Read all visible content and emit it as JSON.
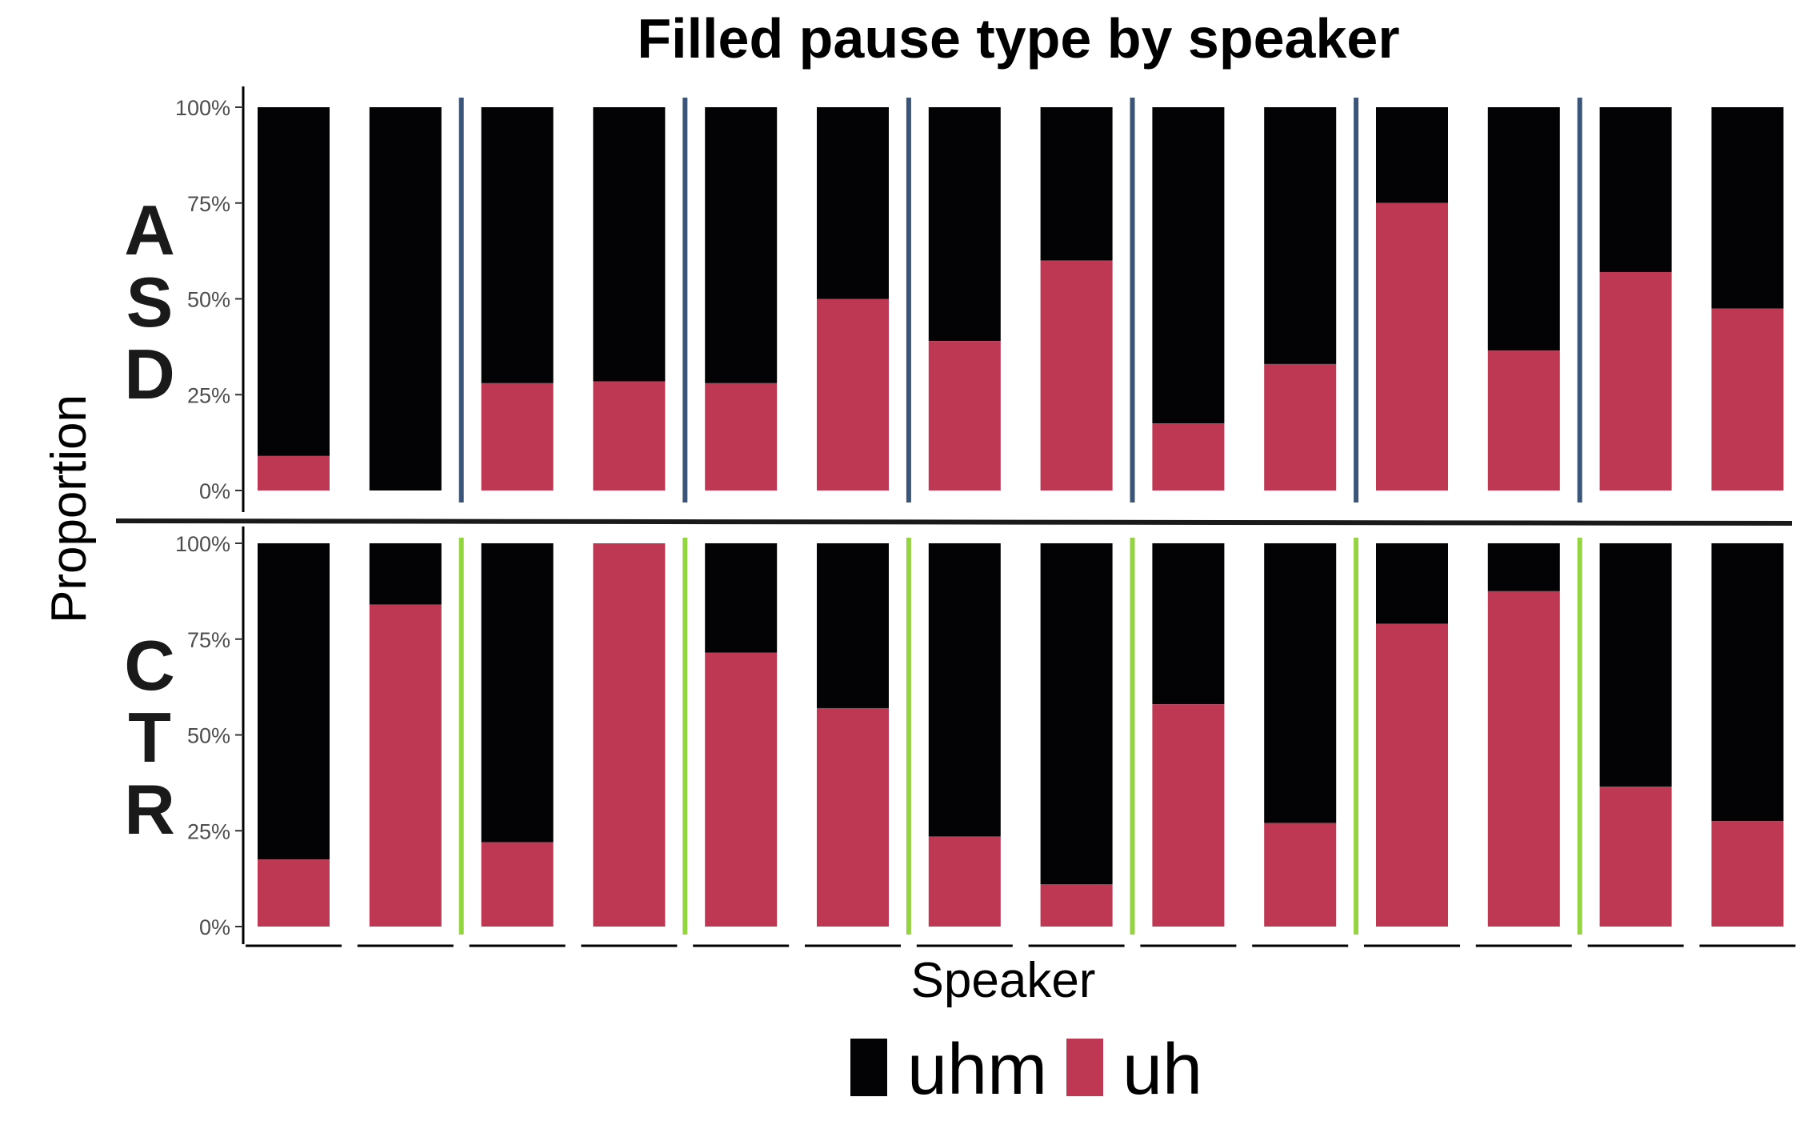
{
  "chart_data": {
    "type": "bar",
    "stacked": true,
    "normalized": true,
    "title": "Filled pause type by speaker",
    "xlabel": "Speaker",
    "ylabel": "Proportion",
    "ylim": [
      0,
      1
    ],
    "yticks": [
      "0%",
      "25%",
      "50%",
      "75%",
      "100%"
    ],
    "grid": false,
    "legend_position": "bottom",
    "legend": [
      {
        "key": "uhm",
        "label": "uhm",
        "color": "#030305"
      },
      {
        "key": "uh",
        "label": "uh",
        "color": "#be3753"
      }
    ],
    "panels": [
      {
        "label": "ASD",
        "letters": [
          "A",
          "S",
          "D"
        ],
        "divider_color": "#3a5578",
        "uh": [
          0.09,
          0.0,
          0.28,
          0.285,
          0.28,
          0.5,
          0.39,
          0.6,
          0.175,
          0.33,
          0.75,
          0.365,
          0.57,
          0.475
        ]
      },
      {
        "label": "CTR",
        "letters": [
          "C",
          "T",
          "R"
        ],
        "divider_color": "#93d440",
        "uh": [
          0.175,
          0.84,
          0.22,
          1.0,
          0.715,
          0.57,
          0.235,
          0.11,
          0.58,
          0.27,
          0.79,
          0.875,
          0.365,
          0.275
        ]
      }
    ]
  }
}
